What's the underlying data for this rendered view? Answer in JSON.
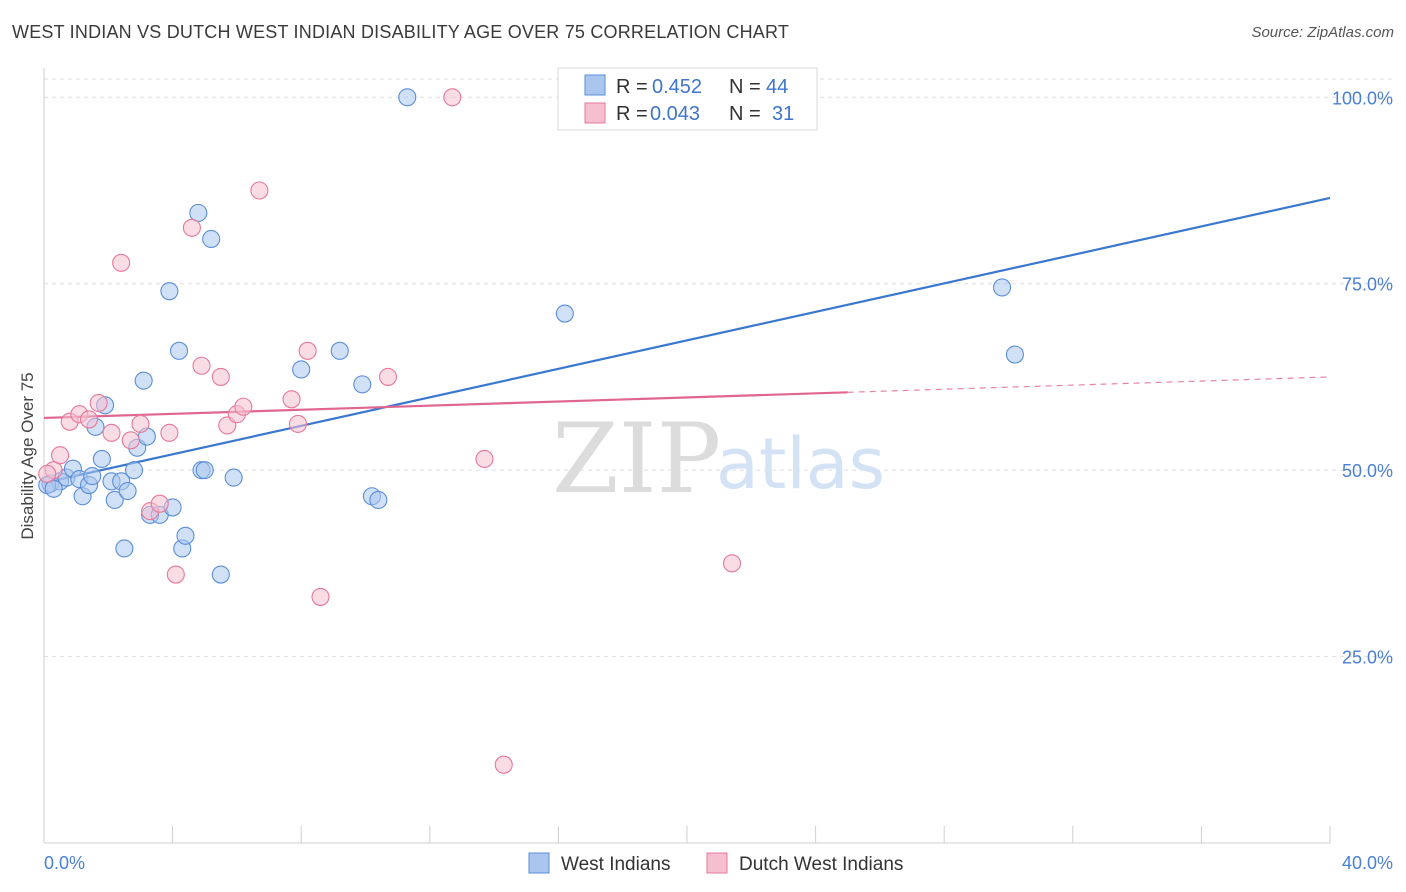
{
  "title": "WEST INDIAN VS DUTCH WEST INDIAN DISABILITY AGE OVER 75 CORRELATION CHART",
  "source": "Source: ZipAtlas.com",
  "watermark": {
    "part1": "ZIP",
    "part2": "atlas"
  },
  "legend": {
    "r_label": "R =",
    "n_label": "N =",
    "rows": [
      {
        "r": "0.452",
        "n": "44"
      },
      {
        "r": "0.043",
        "n": "31"
      }
    ]
  },
  "chart_data": {
    "type": "scatter",
    "xlabel": "",
    "ylabel": "Disability Age Over 75",
    "xlim": [
      0,
      40
    ],
    "ylim": [
      0,
      105
    ],
    "x_tick_labels": {
      "min": "0.0%",
      "max": "40.0%"
    },
    "y_ticks": [
      25,
      50,
      75,
      100
    ],
    "y_tick_labels": [
      "25.0%",
      "50.0%",
      "75.0%",
      "100.0%"
    ],
    "grid": true,
    "legend_position": "top-center",
    "colors": {
      "series1": "#5b8ed8",
      "series2": "#e6789a",
      "series1_fill": "#aac6ee",
      "series2_fill": "#f6bfd0"
    },
    "series": [
      {
        "name": "West Indians",
        "points": [
          [
            0.2,
            48.2
          ],
          [
            0.5,
            48.5
          ],
          [
            0.7,
            49.0
          ],
          [
            0.9,
            50.2
          ],
          [
            1.1,
            48.8
          ],
          [
            1.2,
            46.5
          ],
          [
            1.4,
            48.0
          ],
          [
            1.5,
            49.2
          ],
          [
            1.6,
            55.8
          ],
          [
            1.8,
            51.5
          ],
          [
            1.9,
            58.7
          ],
          [
            2.1,
            48.5
          ],
          [
            2.2,
            46.0
          ],
          [
            2.4,
            48.5
          ],
          [
            2.5,
            39.5
          ],
          [
            2.6,
            47.2
          ],
          [
            2.8,
            50.0
          ],
          [
            2.9,
            53.0
          ],
          [
            3.1,
            62.0
          ],
          [
            3.2,
            54.5
          ],
          [
            3.3,
            44.0
          ],
          [
            3.6,
            44.0
          ],
          [
            3.9,
            74.0
          ],
          [
            4.0,
            45.0
          ],
          [
            4.2,
            66.0
          ],
          [
            4.3,
            39.5
          ],
          [
            4.4,
            41.2
          ],
          [
            4.8,
            84.5
          ],
          [
            4.9,
            50.0
          ],
          [
            5.0,
            50.0
          ],
          [
            5.2,
            81.0
          ],
          [
            5.5,
            36.0
          ],
          [
            5.9,
            49.0
          ],
          [
            8.0,
            63.5
          ],
          [
            9.2,
            66.0
          ],
          [
            9.9,
            61.5
          ],
          [
            10.2,
            46.5
          ],
          [
            10.4,
            46.0
          ],
          [
            11.3,
            100.0
          ],
          [
            16.2,
            71.0
          ],
          [
            29.8,
            74.5
          ],
          [
            30.2,
            65.5
          ],
          [
            0.1,
            48.0
          ],
          [
            0.3,
            47.5
          ]
        ]
      },
      {
        "name": "Dutch West Indians",
        "points": [
          [
            0.3,
            50.0
          ],
          [
            0.5,
            52.0
          ],
          [
            0.8,
            56.5
          ],
          [
            1.1,
            57.5
          ],
          [
            1.4,
            56.8
          ],
          [
            1.7,
            59.0
          ],
          [
            2.1,
            55.0
          ],
          [
            2.4,
            77.8
          ],
          [
            2.7,
            54.0
          ],
          [
            3.0,
            56.2
          ],
          [
            3.3,
            44.5
          ],
          [
            3.6,
            45.5
          ],
          [
            3.9,
            55.0
          ],
          [
            4.1,
            36.0
          ],
          [
            4.6,
            82.5
          ],
          [
            4.9,
            64.0
          ],
          [
            5.5,
            62.5
          ],
          [
            5.7,
            56.0
          ],
          [
            6.0,
            57.5
          ],
          [
            6.2,
            58.5
          ],
          [
            6.7,
            87.5
          ],
          [
            7.7,
            59.5
          ],
          [
            7.9,
            56.2
          ],
          [
            8.2,
            66.0
          ],
          [
            8.6,
            33.0
          ],
          [
            10.7,
            62.5
          ],
          [
            12.7,
            100.0
          ],
          [
            13.7,
            51.5
          ],
          [
            14.3,
            10.5
          ],
          [
            21.4,
            37.5
          ],
          [
            0.1,
            49.5
          ]
        ]
      }
    ],
    "trendlines": [
      {
        "series": "West Indians",
        "x": [
          0,
          40
        ],
        "y": [
          48.3,
          86.5
        ],
        "solid_until": 40
      },
      {
        "series": "Dutch West Indians",
        "x": [
          0,
          40
        ],
        "y": [
          57.0,
          62.5
        ],
        "solid_until": 25
      }
    ]
  }
}
